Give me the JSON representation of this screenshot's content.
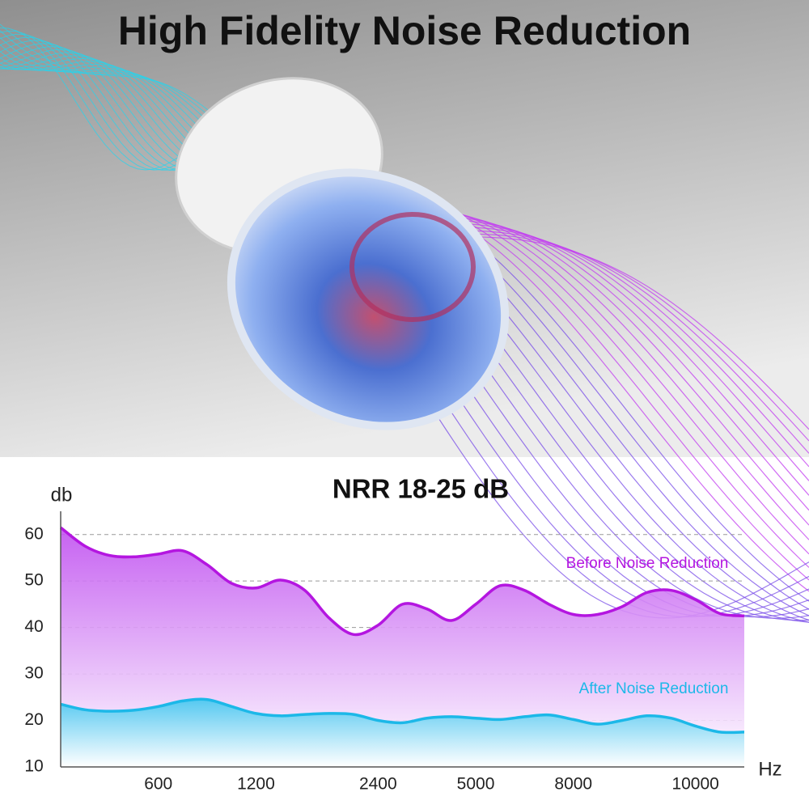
{
  "header": {
    "title": "High Fidelity Noise Reduction"
  },
  "chart_data": {
    "type": "area",
    "title": "NRR 18-25 dB",
    "y_label": "db",
    "x_label": "Hz",
    "categories": [
      null,
      null,
      null,
      null,
      "600",
      null,
      null,
      null,
      "1200",
      null,
      null,
      null,
      null,
      "2400",
      null,
      null,
      null,
      "5000",
      null,
      null,
      null,
      "8000",
      null,
      null,
      null,
      null,
      "10000",
      null,
      null
    ],
    "series": [
      {
        "name": "Before Noise Reduction",
        "color": "#b416e0",
        "values": [
          61.5,
          57.5,
          55.5,
          55.2,
          55.8,
          56.5,
          53.5,
          49.5,
          48.5,
          50.2,
          48,
          42,
          38.5,
          40.5,
          45,
          44,
          41.5,
          45,
          49,
          48,
          45,
          42.8,
          42.8,
          44.5,
          47.5,
          48,
          46,
          43,
          42.5
        ]
      },
      {
        "name": "After Noise Reduction",
        "color": "#1cb8e8",
        "values": [
          23.5,
          22.3,
          22,
          22.2,
          23,
          24.2,
          24.5,
          23,
          21.5,
          21,
          21.3,
          21.5,
          21.3,
          20,
          19.5,
          20.5,
          20.8,
          20.5,
          20.2,
          20.8,
          21.2,
          20.2,
          19.2,
          20,
          21,
          20.5,
          18.8,
          17.5,
          17.5
        ]
      }
    ],
    "ylim": [
      10,
      65
    ],
    "yticks": [
      10,
      20,
      30,
      40,
      50,
      60
    ],
    "grid": true
  }
}
